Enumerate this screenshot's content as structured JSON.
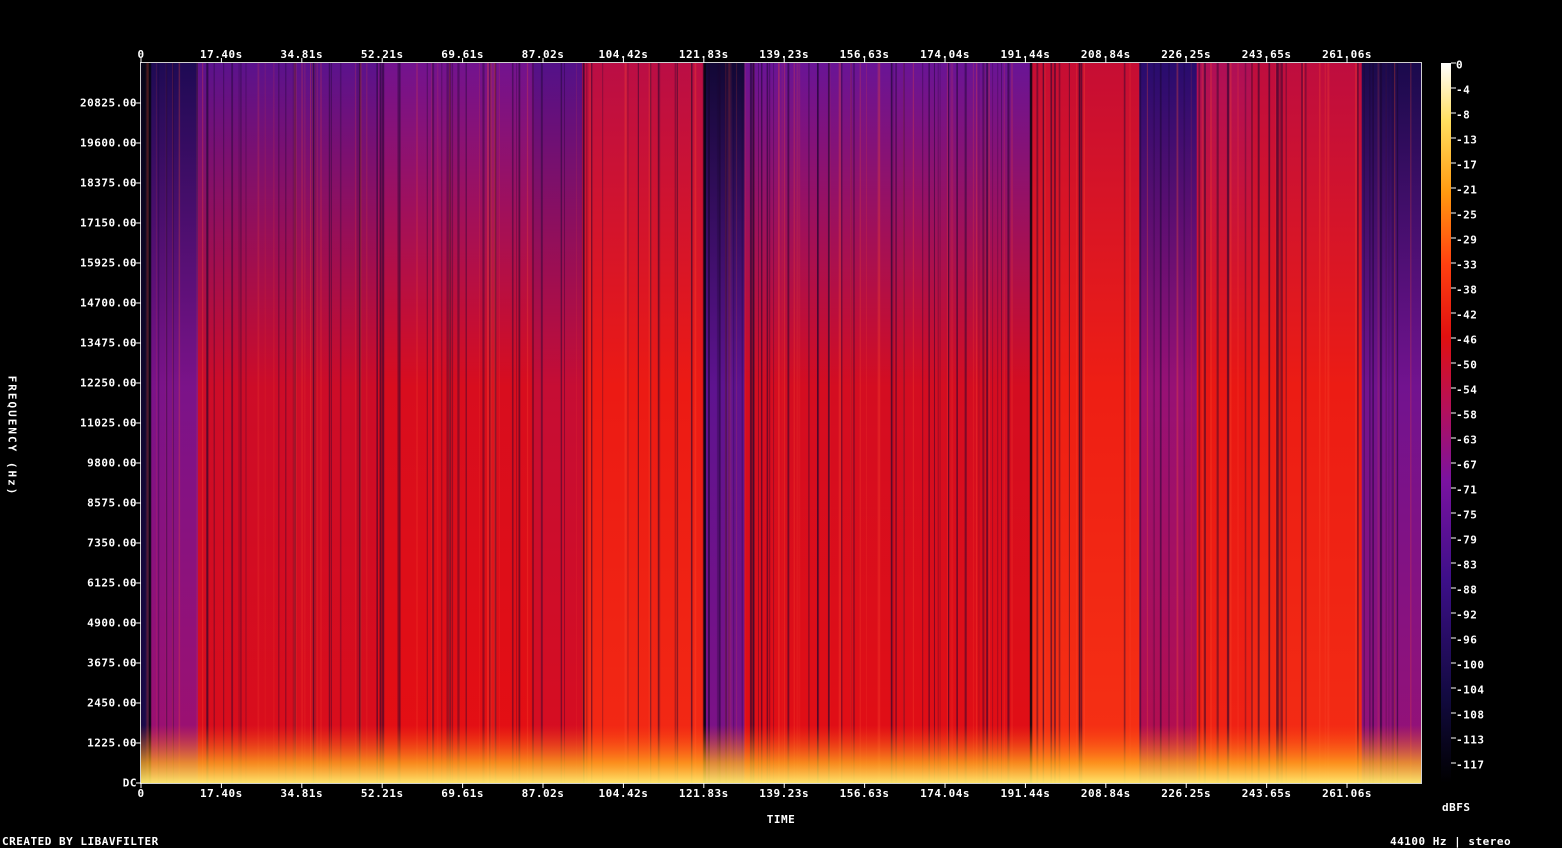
{
  "chart_data": {
    "type": "heatmap",
    "xlabel": "TIME",
    "ylabel": "FREQUENCY (Hz)",
    "colorbar_unit": "dBFS",
    "credit": "CREATED BY LIBAVFILTER",
    "info": "44100 Hz | stereo",
    "x_ticks": [
      "0",
      "17.40s",
      "34.81s",
      "52.21s",
      "69.61s",
      "87.02s",
      "104.42s",
      "121.83s",
      "139.23s",
      "156.63s",
      "174.04s",
      "191.44s",
      "208.84s",
      "226.25s",
      "243.65s",
      "261.06s"
    ],
    "y_ticks": [
      "DC",
      "1225.00",
      "2450.00",
      "3675.00",
      "4900.00",
      "6125.00",
      "7350.00",
      "8575.00",
      "9800.00",
      "11025.00",
      "12250.00",
      "13475.00",
      "14700.00",
      "15925.00",
      "17150.00",
      "18375.00",
      "19600.00",
      "20825.00"
    ],
    "colorbar_ticks": [
      "0",
      "-4",
      "-8",
      "-13",
      "-17",
      "-21",
      "-25",
      "-29",
      "-33",
      "-38",
      "-42",
      "-46",
      "-50",
      "-54",
      "-58",
      "-63",
      "-67",
      "-71",
      "-75",
      "-79",
      "-83",
      "-88",
      "-92",
      "-96",
      "-100",
      "-104",
      "-108",
      "-113",
      "-117"
    ],
    "x_unit": "s",
    "xlim": [
      0,
      278.5
    ],
    "ylim": [
      0,
      22050
    ],
    "zlim": [
      -120,
      0
    ],
    "segments": [
      {
        "start": 0,
        "end": 1.9,
        "level": 0.05
      },
      {
        "start": 1.9,
        "end": 12.4,
        "level": 0.42
      },
      {
        "start": 12.4,
        "end": 51.5,
        "level": 0.62
      },
      {
        "start": 51.5,
        "end": 85.5,
        "level": 0.68
      },
      {
        "start": 85.5,
        "end": 96.0,
        "level": 0.6
      },
      {
        "start": 96.0,
        "end": 122.6,
        "level": 0.85
      },
      {
        "start": 122.6,
        "end": 131.3,
        "level": 0.35
      },
      {
        "start": 131.3,
        "end": 163.8,
        "level": 0.66
      },
      {
        "start": 163.8,
        "end": 193.6,
        "level": 0.66
      },
      {
        "start": 193.6,
        "end": 217.2,
        "level": 0.88
      },
      {
        "start": 217.2,
        "end": 229.7,
        "level": 0.48
      },
      {
        "start": 229.7,
        "end": 241.5,
        "level": 0.82
      },
      {
        "start": 241.5,
        "end": 265.6,
        "level": 0.86
      },
      {
        "start": 265.6,
        "end": 278.5,
        "level": 0.4
      }
    ]
  }
}
